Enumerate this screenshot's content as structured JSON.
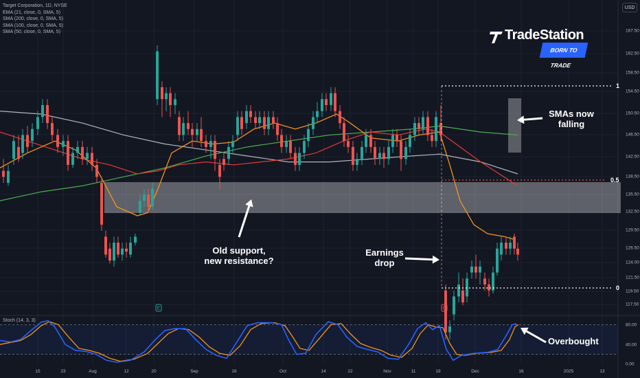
{
  "legend": {
    "title": "Target Corporation, 1D, NYSE",
    "lines": [
      "EMA (21, close, 0, SMA, 5)",
      "SMA (200, close, 0, SMA, 5)",
      "SMA (100, close, 0, SMA, 5)",
      "SMA (50, close, 0, SMA, 5)"
    ]
  },
  "currency_button": "USD",
  "price_axis": [
    "167.50",
    "162.50",
    "158.50",
    "154.50",
    "150.50",
    "146.50",
    "142.50",
    "138.50",
    "135.50",
    "132.50",
    "129.50",
    "126.50",
    "124.00",
    "121.50",
    "119.50",
    "117.50"
  ],
  "stoch_axis": [
    "80.00",
    "40.00",
    "0.00"
  ],
  "time_axis": [
    "15",
    "23",
    "Aug",
    "12",
    "20",
    "Sep",
    "16",
    "Oct",
    "14",
    "22",
    "Nov",
    "11",
    "19",
    "Dec",
    "16",
    "2025",
    "13"
  ],
  "stoch_label": "Stoch (14, 3, 3)",
  "earnings_markers": [
    "E",
    "E"
  ],
  "fib_levels": {
    "top": "1",
    "mid": "0.5",
    "bottom": "0"
  },
  "annotations": {
    "smas": [
      "SMAs now",
      "falling"
    ],
    "resistance": [
      "Old support,",
      "new resistance?"
    ],
    "earnings": [
      "Earnings",
      "drop"
    ],
    "overbought": "Overbought"
  },
  "brand": {
    "name": "TradeStation",
    "tagline": "BORN TO TRADE"
  },
  "colors": {
    "background": "#131722",
    "up": "#26a69a",
    "down": "#ef5350",
    "ema21": "#f7931a",
    "sma200": "#b2b5be",
    "sma100": "#4caf50",
    "sma50": "#e53935",
    "stoch_k": "#2962ff",
    "stoch_d": "#f7931a",
    "zone": "#ffffff"
  }
}
